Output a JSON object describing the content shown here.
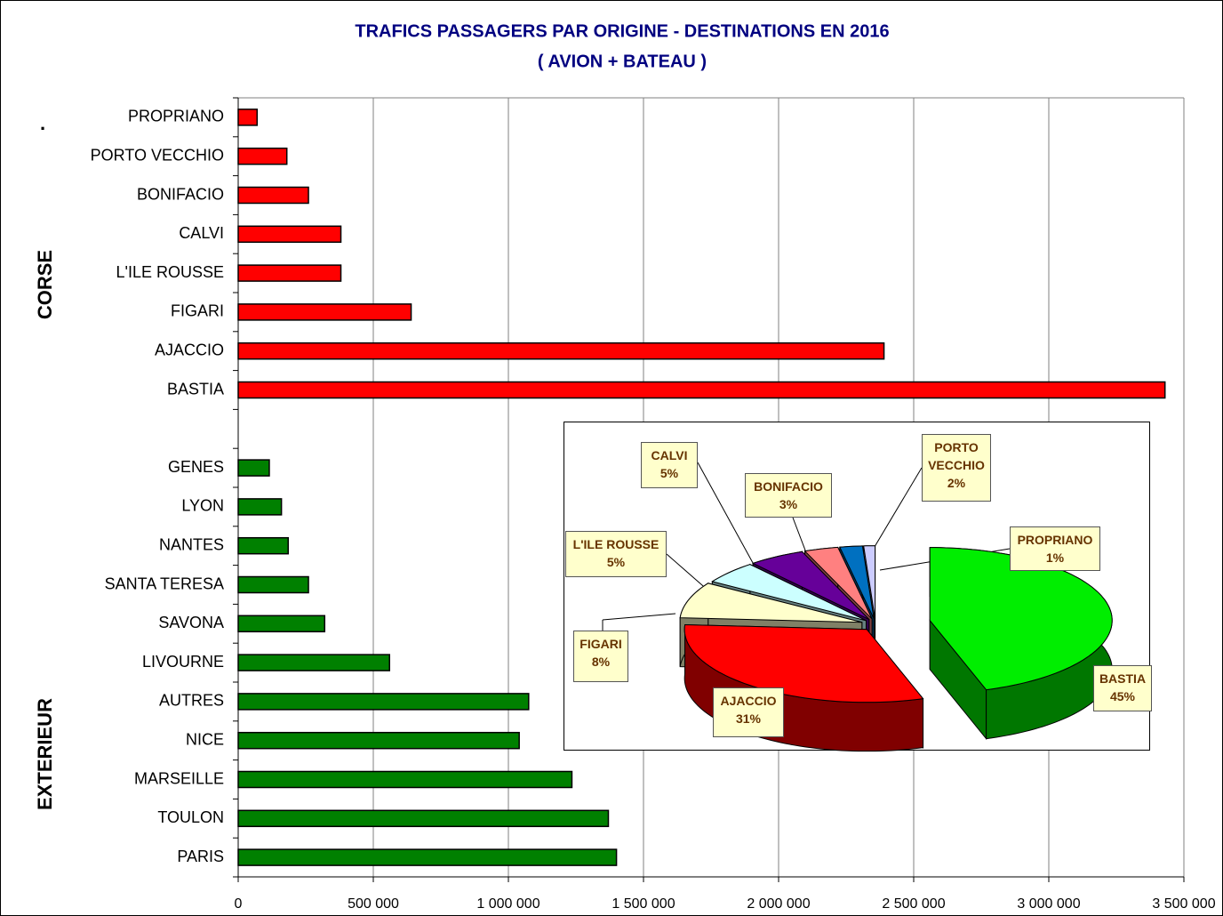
{
  "chart_data": [
    {
      "type": "bar",
      "title": "TRAFICS PASSAGERS PAR ORIGINE - DESTINATIONS EN 2016",
      "subtitle": "( AVION + BATEAU )",
      "group_labels": [
        "CORSE",
        "EXTERIEUR"
      ],
      "mark": ".",
      "categories": [
        "PROPRIANO",
        "PORTO VECCHIO",
        "BONIFACIO",
        "CALVI",
        "L'ILE ROUSSE",
        "FIGARI",
        "AJACCIO",
        "BASTIA",
        null,
        "GENES",
        "LYON",
        "NANTES",
        "SANTA TERESA",
        "SAVONA",
        "LIVOURNE",
        "AUTRES",
        "NICE",
        "MARSEILLE",
        "TOULON",
        "PARIS"
      ],
      "values": [
        70000,
        180000,
        260000,
        380000,
        380000,
        640000,
        2390000,
        3430000,
        null,
        115000,
        160000,
        185000,
        260000,
        320000,
        560000,
        1075000,
        1040000,
        1235000,
        1370000,
        1400000
      ],
      "colors": [
        "#ff0000",
        "#ff0000",
        "#ff0000",
        "#ff0000",
        "#ff0000",
        "#ff0000",
        "#ff0000",
        "#ff0000",
        null,
        "#008000",
        "#008000",
        "#008000",
        "#008000",
        "#008000",
        "#008000",
        "#008000",
        "#008000",
        "#008000",
        "#008000",
        "#008000"
      ],
      "xlim": [
        0,
        3500000
      ],
      "xticks": [
        0,
        {
          "value": 500000,
          "label": "500 000"
        },
        {
          "value": 1000000,
          "label": "1 000 000"
        },
        {
          "value": 1500000,
          "label": "1 500 000"
        },
        {
          "value": 2000000,
          "label": "2 000 000"
        },
        {
          "value": 2500000,
          "label": "2 500 000"
        },
        {
          "value": 3000000,
          "label": "3 000 000"
        },
        {
          "value": 3500000,
          "label": "3 500 000"
        }
      ],
      "grid": true
    },
    {
      "type": "pie",
      "categories": [
        "BASTIA",
        "AJACCIO",
        "FIGARI",
        "L'ILE ROUSSE",
        "CALVI",
        "BONIFACIO",
        "PORTO VECCHIO",
        "PROPRIANO"
      ],
      "values": [
        45,
        31,
        8,
        5,
        5,
        3,
        2,
        1
      ],
      "value_labels": [
        "45%",
        "31%",
        "8%",
        "5%",
        "5%",
        "3%",
        "2%",
        "1%"
      ],
      "colors": [
        "#00ee00",
        "#ff0000",
        "#ffffcc",
        "#ccffff",
        "#660099",
        "#ff8080",
        "#0070c0",
        "#ccccff"
      ]
    }
  ]
}
